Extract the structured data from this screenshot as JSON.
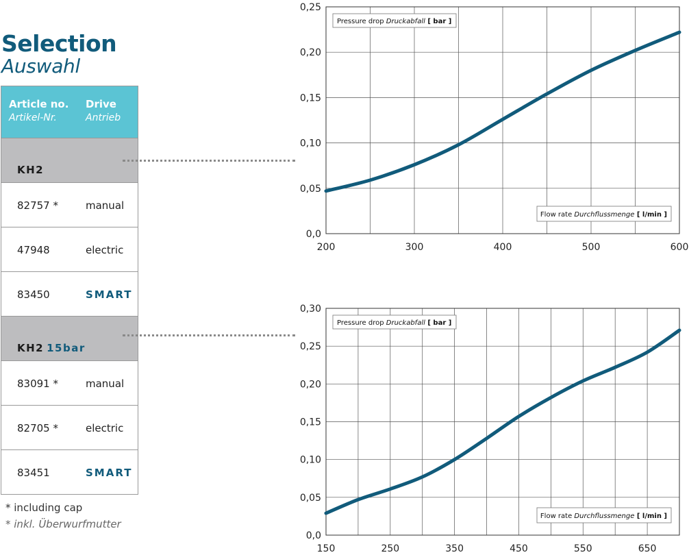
{
  "heading": {
    "title": "Selection",
    "subtitle": "Auswahl"
  },
  "table": {
    "col1": {
      "en": "Article no.",
      "de": "Artikel-Nr."
    },
    "col2": {
      "en": "Drive",
      "de": "Antrieb"
    },
    "groups": [
      {
        "name": "KH2",
        "suffix": "",
        "rows": [
          {
            "article": "82757 *",
            "drive": "manual",
            "smart": false
          },
          {
            "article": "47948",
            "drive": "electric",
            "smart": false
          },
          {
            "article": "83450",
            "drive": "SMART",
            "smart": true
          }
        ]
      },
      {
        "name": "KH2",
        "suffix": "15bar",
        "rows": [
          {
            "article": "83091 *",
            "drive": "manual",
            "smart": false
          },
          {
            "article": "82705 *",
            "drive": "electric",
            "smart": false
          },
          {
            "article": "83451",
            "drive": "SMART",
            "smart": true
          }
        ]
      }
    ]
  },
  "footnote": {
    "en": "* including cap",
    "de": "* inkl. Überwurfmutter"
  },
  "colors": {
    "accent": "#115b7b",
    "header_bg": "#5bc4d4",
    "group_bg": "#bdbdbf",
    "curve": "#115b7b"
  },
  "chart_data": [
    {
      "type": "line",
      "ylabel": {
        "en": "Pressure drop",
        "de": "Druckabfall",
        "unit": "[ bar ]"
      },
      "xlabel": {
        "en": "Flow rate",
        "de": "Durchflussmenge",
        "unit": "[ l/min ]"
      },
      "xlim": [
        200,
        600
      ],
      "ylim": [
        0,
        0.25
      ],
      "xticks": [
        200,
        300,
        400,
        500,
        600
      ],
      "xtick_labels": [
        "200",
        "300",
        "400",
        "500",
        "600"
      ],
      "yticks": [
        0,
        0.05,
        0.1,
        0.15,
        0.2,
        0.25
      ],
      "ytick_labels": [
        "0,0",
        "0,05",
        "0,10",
        "0,15",
        "0,20",
        "0,25"
      ],
      "xgrid": [
        200,
        250,
        300,
        350,
        400,
        450,
        500,
        550,
        600
      ],
      "grid": true,
      "series": [
        {
          "x": [
            200,
            250,
            300,
            350,
            400,
            450,
            500,
            550,
            600
          ],
          "y": [
            0.047,
            0.059,
            0.076,
            0.098,
            0.126,
            0.154,
            0.18,
            0.202,
            0.222
          ]
        }
      ]
    },
    {
      "type": "line",
      "ylabel": {
        "en": "Pressure drop",
        "de": "Druckabfall",
        "unit": "[ bar ]"
      },
      "xlabel": {
        "en": "Flow rate",
        "de": "Durchflussmenge",
        "unit": "[ l/min ]"
      },
      "xlim": [
        150,
        700
      ],
      "ylim": [
        0,
        0.3
      ],
      "xticks": [
        150,
        250,
        350,
        450,
        550,
        650
      ],
      "xtick_labels": [
        "150",
        "250",
        "350",
        "450",
        "550",
        "650"
      ],
      "yticks": [
        0,
        0.05,
        0.1,
        0.15,
        0.2,
        0.25,
        0.3
      ],
      "ytick_labels": [
        "0,0",
        "0,05",
        "0,10",
        "0,15",
        "0,20",
        "0,25",
        "0,30"
      ],
      "xgrid": [
        150,
        200,
        250,
        300,
        350,
        400,
        450,
        500,
        550,
        600,
        650,
        700
      ],
      "grid": true,
      "series": [
        {
          "x": [
            150,
            200,
            250,
            300,
            350,
            400,
            450,
            500,
            550,
            600,
            650,
            700
          ],
          "y": [
            0.029,
            0.047,
            0.061,
            0.077,
            0.1,
            0.128,
            0.157,
            0.182,
            0.204,
            0.222,
            0.242,
            0.271
          ]
        }
      ]
    }
  ]
}
